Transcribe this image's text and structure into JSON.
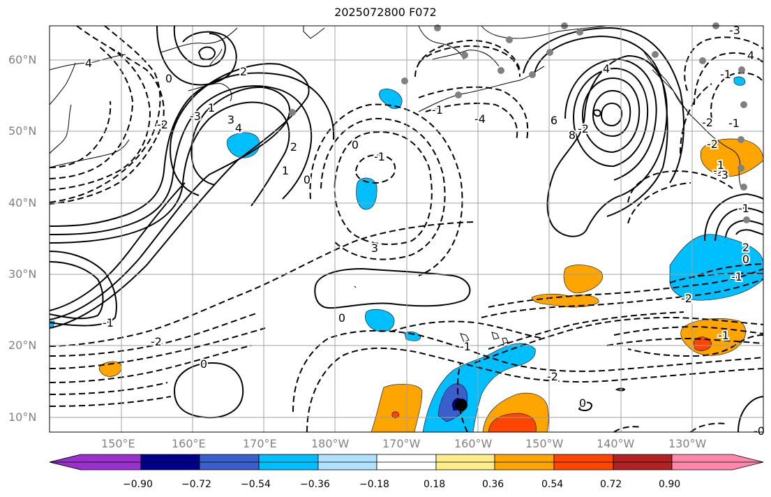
{
  "title": "2025072800 F072",
  "map": {
    "lat_labels": [
      "60°N",
      "50°N",
      "40°N",
      "30°N",
      "20°N",
      "10°N"
    ],
    "lon_labels": [
      "150°E",
      "160°E",
      "170°E",
      "180°W",
      "170°W",
      "160°W",
      "150°W",
      "140°W",
      "130°W"
    ],
    "grid_color": "#a0a0a0",
    "coastline_color": "#000000",
    "contour_labels": [
      "4",
      "0",
      "2",
      "1",
      "3",
      "4",
      "2",
      "1",
      "0",
      "-2",
      "-3",
      "-1",
      "0",
      "3",
      "4",
      "6",
      "8",
      "-2",
      "-1",
      "-2",
      "4",
      "-3",
      "-1",
      "-4",
      "-3",
      "2",
      "-1",
      "0",
      "-2",
      "-1",
      "-2",
      "1",
      "-2",
      "-1",
      "-2",
      "-1",
      "0",
      "0",
      "0",
      "-1",
      "-2",
      "-1",
      "-0"
    ],
    "station_marker_color": "#808080"
  },
  "colorbar": {
    "tick_labels": [
      "−0.90",
      "−0.72",
      "−0.54",
      "−0.36",
      "−0.18",
      "0.18",
      "0.36",
      "0.54",
      "0.72",
      "0.90"
    ],
    "colors": [
      "#9932cc",
      "#00008b",
      "#3a5fcd",
      "#00bfff",
      "#b0e2ff",
      "#ffffff",
      "#ffec8b",
      "#ffa500",
      "#ff4500",
      "#b22222",
      "#ff88aa"
    ]
  }
}
